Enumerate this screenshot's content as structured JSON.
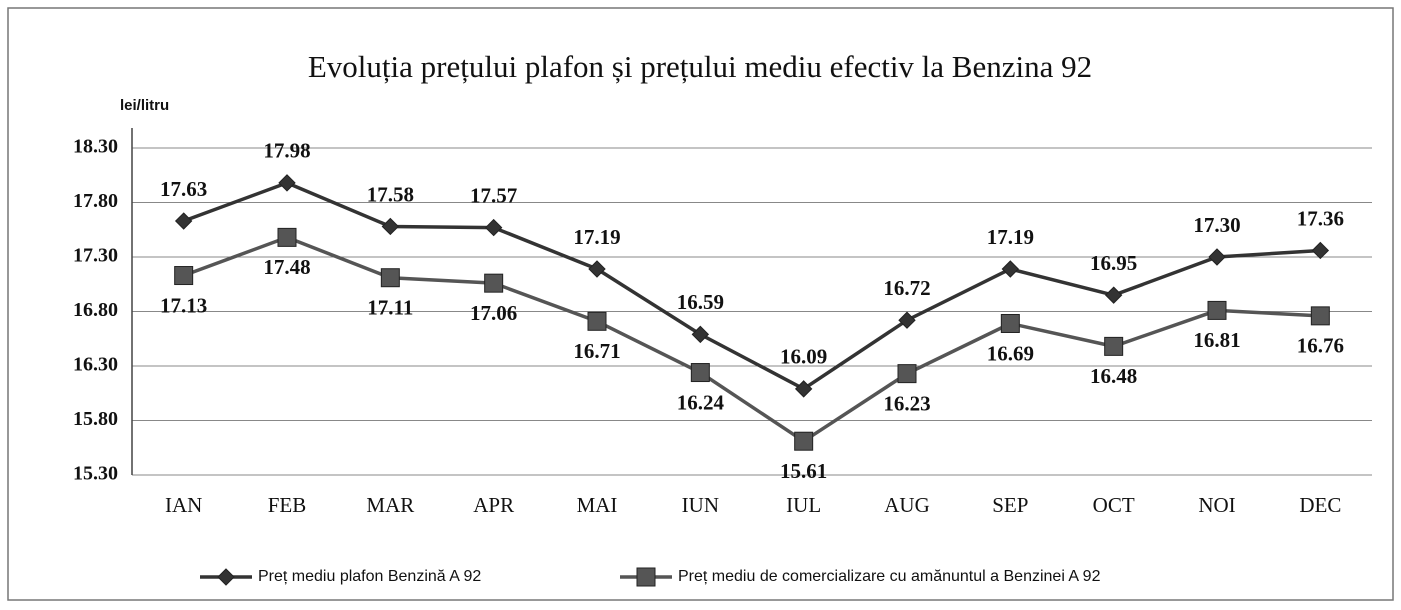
{
  "chart_data": {
    "type": "line",
    "title": "Evoluția prețului plafon și prețului mediu efectiv la Benzina 92",
    "y_label": "lei/litru",
    "categories": [
      "IAN",
      "FEB",
      "MAR",
      "APR",
      "MAI",
      "IUN",
      "IUL",
      "AUG",
      "SEP",
      "OCT",
      "NOI",
      "DEC"
    ],
    "series": [
      {
        "name": "Preț mediu plafon Benzină A 92",
        "color": "#333333",
        "marker": "diamond",
        "values": [
          17.63,
          17.98,
          17.58,
          17.57,
          17.19,
          16.59,
          16.09,
          16.72,
          17.19,
          16.95,
          17.3,
          17.36
        ],
        "value_labels": [
          "17.63",
          "17.98",
          "17.58",
          "17.57",
          "17.19",
          "16.59",
          "16.09",
          "16.72",
          "17.19",
          "16.95",
          "17.30",
          "17.36"
        ]
      },
      {
        "name": "Preț mediu de comercializare cu amănuntul a Benzinei A 92",
        "color": "#555555",
        "marker": "square",
        "values": [
          17.13,
          17.48,
          17.11,
          17.06,
          16.71,
          16.24,
          15.61,
          16.23,
          16.69,
          16.48,
          16.81,
          16.76
        ],
        "value_labels": [
          "17.13",
          "17.48",
          "17.11",
          "17.06",
          "16.71",
          "16.24",
          "15.61",
          "16.23",
          "16.69",
          "16.48",
          "16.81",
          "16.76"
        ]
      }
    ],
    "ylim": [
      15.3,
      18.3
    ],
    "yticks": [
      {
        "value": 15.3,
        "label": "15.30"
      },
      {
        "value": 15.8,
        "label": "15.80"
      },
      {
        "value": 16.3,
        "label": "16.30"
      },
      {
        "value": 16.8,
        "label": "16.80"
      },
      {
        "value": 17.3,
        "label": "17.30"
      },
      {
        "value": 17.8,
        "label": "17.80"
      },
      {
        "value": 18.3,
        "label": "18.30"
      }
    ],
    "grid": true,
    "legend": "bottom"
  }
}
